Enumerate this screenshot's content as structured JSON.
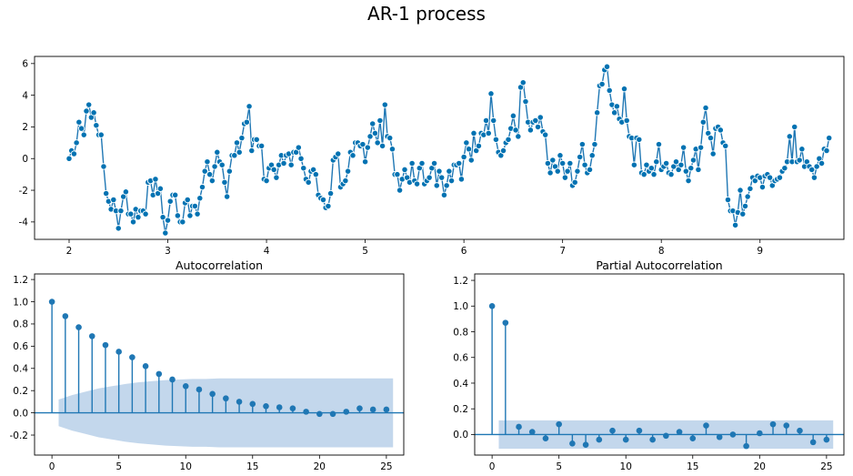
{
  "figure": {
    "title": "AR-1 process"
  },
  "colors": {
    "series": "#1f77b4",
    "marker_face": "#0072b2",
    "marker_edge": "#ffffff",
    "confint": "#c3d7ec"
  },
  "chart_data": [
    {
      "type": "line",
      "title": "",
      "xlabel": "",
      "ylabel": "",
      "xlim": [
        1.65,
        9.85
      ],
      "ylim": [
        -5.1,
        6.45
      ],
      "xticks": [
        2,
        3,
        4,
        5,
        6,
        7,
        8,
        9
      ],
      "yticks": [
        -4,
        -2,
        0,
        2,
        4,
        6
      ],
      "x_start": 2.0,
      "x_step": 0.025,
      "marker": "circle",
      "grid": false,
      "series": [
        {
          "values": [
            0.0,
            0.5,
            0.3,
            1.0,
            2.3,
            1.9,
            1.5,
            3.0,
            3.4,
            2.6,
            2.9,
            2.1,
            1.5,
            1.5,
            -0.5,
            -2.2,
            -2.7,
            -3.2,
            -2.6,
            -3.3,
            -4.4,
            -3.3,
            -2.4,
            -2.1,
            -3.5,
            -3.5,
            -4.0,
            -3.2,
            -3.7,
            -3.3,
            -3.3,
            -3.5,
            -1.5,
            -1.4,
            -2.3,
            -1.3,
            -2.2,
            -1.9,
            -3.7,
            -4.7,
            -3.9,
            -2.7,
            -2.3,
            -2.3,
            -3.6,
            -4.0,
            -4.0,
            -2.8,
            -2.6,
            -3.6,
            -3.0,
            -3.0,
            -3.5,
            -2.5,
            -1.8,
            -0.8,
            -0.2,
            -1.0,
            -1.4,
            -0.5,
            0.4,
            -0.2,
            -0.4,
            -1.5,
            -2.4,
            -0.8,
            0.2,
            0.2,
            1.0,
            0.4,
            1.3,
            2.2,
            2.3,
            3.3,
            0.5,
            1.2,
            1.2,
            0.8,
            0.8,
            -1.3,
            -1.4,
            -0.6,
            -0.4,
            -0.7,
            -1.2,
            -0.4,
            0.2,
            -0.3,
            0.2,
            0.3,
            -0.4,
            0.4,
            0.4,
            0.7,
            0.0,
            -0.6,
            -1.3,
            -1.5,
            -0.8,
            -0.7,
            -1.0,
            -2.3,
            -2.5,
            -2.6,
            -3.1,
            -3.0,
            -2.2,
            -0.1,
            0.1,
            0.3,
            -1.8,
            -1.6,
            -1.4,
            -0.8,
            0.4,
            0.2,
            1.0,
            1.0,
            0.8,
            0.9,
            -0.2,
            0.7,
            1.4,
            2.2,
            1.6,
            1.0,
            2.4,
            0.8,
            3.4,
            1.4,
            1.3,
            0.6,
            -1.0,
            -1.0,
            -2.0,
            -1.3,
            -0.7,
            -1.2,
            -1.5,
            -0.3,
            -1.4,
            -1.6,
            -0.6,
            -0.3,
            -1.6,
            -1.4,
            -1.2,
            -0.6,
            -0.3,
            -1.7,
            -0.8,
            -1.2,
            -2.3,
            -1.7,
            -0.8,
            -1.4,
            -0.4,
            -0.4,
            -0.3,
            -1.3,
            0.1,
            1.0,
            0.6,
            -0.1,
            1.6,
            0.5,
            0.8,
            1.6,
            1.5,
            2.4,
            1.6,
            4.1,
            2.4,
            1.2,
            0.4,
            0.2,
            0.5,
            1.0,
            1.2,
            1.9,
            2.7,
            1.8,
            1.4,
            4.5,
            4.8,
            3.6,
            2.3,
            1.8,
            2.3,
            2.4,
            2.0,
            2.6,
            1.7,
            1.5,
            -0.3,
            -0.9,
            -0.1,
            -0.5,
            -0.8,
            0.2,
            -0.3,
            -1.2,
            -0.8,
            -0.3,
            -1.7,
            -1.5,
            -0.8,
            0.1,
            0.9,
            -0.4,
            -0.9,
            -0.7,
            0.2,
            0.9,
            2.9,
            4.6,
            4.7,
            5.6,
            5.8,
            4.3,
            3.4,
            2.9,
            3.3,
            2.5,
            2.3,
            4.4,
            2.4,
            1.4,
            1.3,
            -0.4,
            1.3,
            1.2,
            -0.9,
            -1.0,
            -0.4,
            -0.8,
            -0.6,
            -1.0,
            -0.2,
            0.9,
            -0.7,
            -0.5,
            -0.3,
            -0.9,
            -1.0,
            -0.5,
            -0.2,
            -0.7,
            -0.4,
            0.7,
            -0.8,
            -1.4,
            -0.6,
            -0.1,
            0.6,
            -0.7,
            0.7,
            2.3,
            3.2,
            1.6,
            1.3,
            0.3,
            1.9,
            2.0,
            1.8,
            1.0,
            0.8,
            -2.6,
            -3.3,
            -3.3,
            -4.2,
            -3.4,
            -2.0,
            -3.5,
            -3.0,
            -2.4,
            -1.9,
            -1.2,
            -1.4,
            -1.1,
            -1.2,
            -1.8,
            -1.1,
            -1.0,
            -1.2,
            -1.7,
            -1.4,
            -1.3,
            -1.2,
            -0.8,
            -0.6,
            -0.2,
            1.4,
            -0.2,
            2.0,
            -0.2,
            -0.1,
            0.6,
            -0.5,
            -0.2,
            -0.5,
            -0.7,
            -1.2,
            -0.5,
            0.0,
            -0.3,
            0.6,
            0.5,
            1.3
          ]
        }
      ]
    },
    {
      "type": "stem",
      "title": "Autocorrelation",
      "xlabel": "",
      "ylabel": "",
      "xlim": [
        -1.3,
        26.3
      ],
      "ylim": [
        -0.38,
        1.25
      ],
      "xticks": [
        0,
        5,
        10,
        15,
        20,
        25
      ],
      "yticks": [
        -0.2,
        0.0,
        0.2,
        0.4,
        0.6,
        0.8,
        1.0,
        1.2
      ],
      "lags": [
        0,
        1,
        2,
        3,
        4,
        5,
        6,
        7,
        8,
        9,
        10,
        11,
        12,
        13,
        14,
        15,
        16,
        17,
        18,
        19,
        20,
        21,
        22,
        23,
        24,
        25
      ],
      "values": [
        1.0,
        0.87,
        0.77,
        0.69,
        0.61,
        0.55,
        0.5,
        0.42,
        0.35,
        0.3,
        0.24,
        0.21,
        0.17,
        0.13,
        0.1,
        0.08,
        0.06,
        0.05,
        0.04,
        0.01,
        -0.01,
        -0.01,
        0.01,
        0.04,
        0.03,
        0.03
      ],
      "confint": {
        "x_range": [
          0.5,
          25.5
        ],
        "upper": [
          0.12,
          0.16,
          0.19,
          0.22,
          0.24,
          0.26,
          0.275,
          0.285,
          0.295,
          0.3,
          0.305,
          0.305,
          0.31,
          0.31,
          0.31,
          0.31,
          0.31,
          0.31,
          0.31,
          0.31,
          0.31,
          0.31,
          0.31,
          0.31,
          0.31,
          0.31
        ]
      }
    },
    {
      "type": "stem",
      "title": "Partial Autocorrelation",
      "xlabel": "",
      "ylabel": "",
      "xlim": [
        -1.3,
        26.3
      ],
      "ylim": [
        -0.16,
        1.25
      ],
      "xticks": [
        0,
        5,
        10,
        15,
        20,
        25
      ],
      "yticks": [
        0.0,
        0.2,
        0.4,
        0.6,
        0.8,
        1.0,
        1.2
      ],
      "lags": [
        0,
        1,
        2,
        3,
        4,
        5,
        6,
        7,
        8,
        9,
        10,
        11,
        12,
        13,
        14,
        15,
        16,
        17,
        18,
        19,
        20,
        21,
        22,
        23,
        24,
        25
      ],
      "values": [
        1.0,
        0.87,
        0.06,
        0.02,
        -0.03,
        0.08,
        -0.07,
        -0.08,
        -0.04,
        0.03,
        -0.04,
        0.03,
        -0.04,
        -0.01,
        0.02,
        -0.03,
        0.07,
        -0.02,
        0.0,
        -0.09,
        0.01,
        0.08,
        0.07,
        0.03,
        -0.06,
        -0.04
      ],
      "confint": {
        "x_range": [
          0.5,
          25.5
        ],
        "upper": [
          0.11
        ]
      }
    }
  ]
}
